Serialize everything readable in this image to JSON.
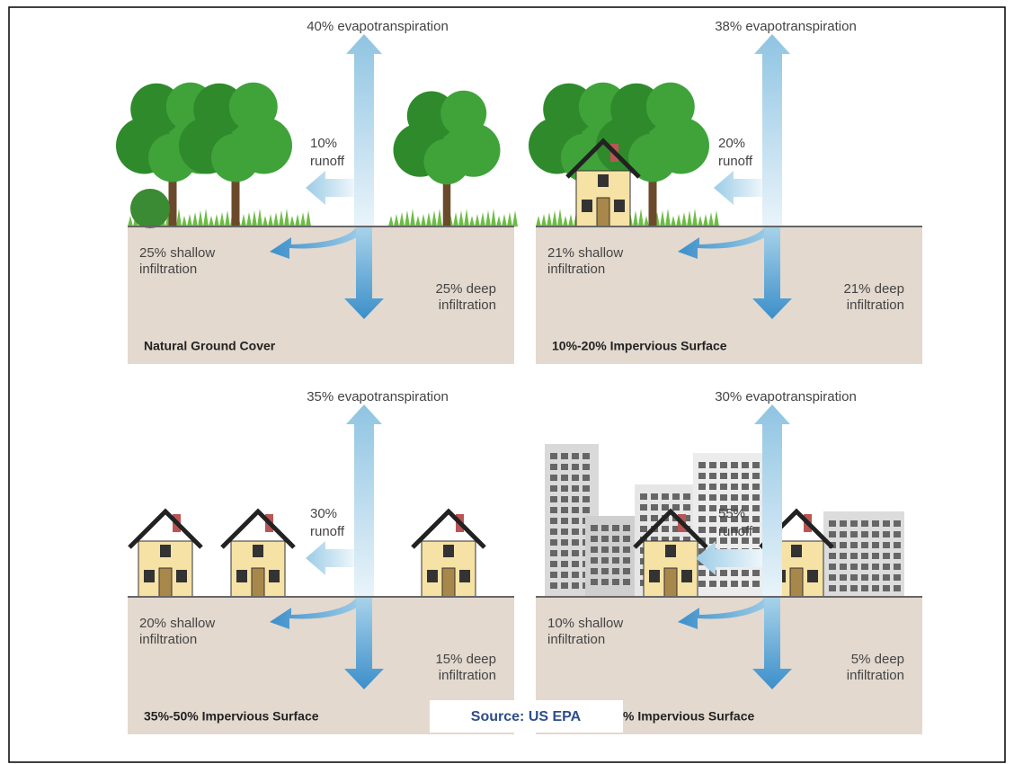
{
  "panels": [
    {
      "title": "Natural Ground Cover",
      "evapotranspiration": "40% evapotranspiration",
      "runoff": [
        "10%",
        "runoff"
      ],
      "shallow": [
        "25% shallow",
        "infiltration"
      ],
      "deep": [
        "25% deep",
        "infiltration"
      ]
    },
    {
      "title": "10%-20% Impervious Surface",
      "evapotranspiration": "38% evapotranspiration",
      "runoff": [
        "20%",
        "runoff"
      ],
      "shallow": [
        "21% shallow",
        "infiltration"
      ],
      "deep": [
        "21% deep",
        "infiltration"
      ]
    },
    {
      "title": "35%-50% Impervious Surface",
      "evapotranspiration": "35% evapotranspiration",
      "runoff": [
        "30%",
        "runoff"
      ],
      "shallow": [
        "20% shallow",
        "infiltration"
      ],
      "deep": [
        "15% deep",
        "infiltration"
      ]
    },
    {
      "title": "% Impervious Surface",
      "evapotranspiration": "30% evapotranspiration",
      "runoff": [
        "55%",
        "runoff"
      ],
      "shallow": [
        "10% shallow",
        "infiltration"
      ],
      "deep": [
        "5% deep",
        "infiltration"
      ]
    }
  ],
  "source": "Source: US EPA"
}
